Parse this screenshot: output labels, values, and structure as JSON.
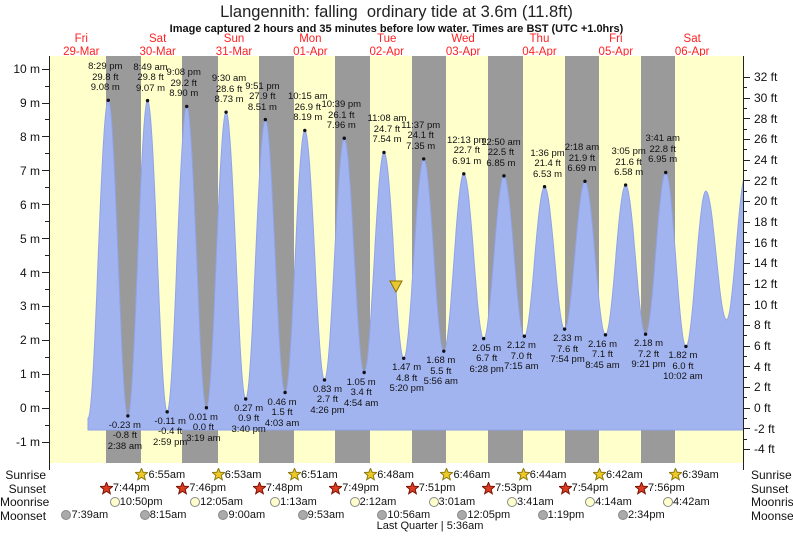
{
  "chart_data": {
    "type": "area",
    "title": "Llangennith: falling  ordinary tide at 3.6m (11.8ft)",
    "subtitle": "Image captured 2 hours and 35 minutes before low water. Times are BST (UTC +1.0hrs)",
    "days": [
      {
        "dow": "Fri",
        "date": "29-Mar"
      },
      {
        "dow": "Sat",
        "date": "30-Mar"
      },
      {
        "dow": "Sun",
        "date": "31-Mar"
      },
      {
        "dow": "Mon",
        "date": "01-Apr"
      },
      {
        "dow": "Tue",
        "date": "02-Apr"
      },
      {
        "dow": "Wed",
        "date": "03-Apr"
      },
      {
        "dow": "Thu",
        "date": "04-Apr"
      },
      {
        "dow": "Fri",
        "date": "05-Apr"
      },
      {
        "dow": "Sat",
        "date": "06-Apr"
      }
    ],
    "y_axis_left": {
      "unit": "m",
      "max": 10,
      "min": -1,
      "label_step": 1
    },
    "y_axis_right": {
      "unit": "ft",
      "max": 32,
      "min": -4,
      "label_step": 2
    },
    "high_tides": [
      {
        "time": "8:29 pm",
        "ft": "29.8 ft",
        "m": "9.08 m",
        "hours": 20.483,
        "height": 9.08
      },
      {
        "time": "8:49 am",
        "ft": "29.8 ft",
        "m": "9.07 m",
        "hours": 32.817,
        "height": 9.07
      },
      {
        "time": "9:08 pm",
        "ft": "29.2 ft",
        "m": "8.90 m",
        "hours": 45.133,
        "height": 8.9
      },
      {
        "time": "9:30 am",
        "ft": "28.6 ft",
        "m": "8.73 m",
        "hours": 57.5,
        "height": 8.73
      },
      {
        "time": "9:51 pm",
        "ft": "27.9 ft",
        "m": "8.51 m",
        "hours": 69.85,
        "height": 8.51
      },
      {
        "time": "10:15 am",
        "ft": "26.9 ft",
        "m": "8.19 m",
        "hours": 82.25,
        "height": 8.19
      },
      {
        "time": "10:39 pm",
        "ft": "26.1 ft",
        "m": "7.96 m",
        "hours": 94.65,
        "height": 7.96
      },
      {
        "time": "11:08 am",
        "ft": "24.7 ft",
        "m": "7.54 m",
        "hours": 107.133,
        "height": 7.54
      },
      {
        "time": "11:37 pm",
        "ft": "24.1 ft",
        "m": "7.35 m",
        "hours": 119.617,
        "height": 7.35
      },
      {
        "time": "12:13 pm",
        "ft": "22.7 ft",
        "m": "6.91 m",
        "hours": 132.217,
        "height": 6.91
      },
      {
        "time": "12:50 am",
        "ft": "22.5 ft",
        "m": "6.85 m",
        "hours": 144.833,
        "height": 6.85
      },
      {
        "time": "1:36 pm",
        "ft": "21.4 ft",
        "m": "6.53 m",
        "hours": 157.6,
        "height": 6.53
      },
      {
        "time": "2:18 am",
        "ft": "21.9 ft",
        "m": "6.69 m",
        "hours": 170.3,
        "height": 6.69
      },
      {
        "time": "3:05 pm",
        "ft": "21.6 ft",
        "m": "6.58 m",
        "hours": 183.083,
        "height": 6.58
      },
      {
        "time": "3:41 am",
        "ft": "22.8 ft",
        "m": "6.95 m",
        "hours": 195.683,
        "height": 6.95
      }
    ],
    "low_tides": [
      {
        "m": "-0.23 m",
        "ft": "-0.8 ft",
        "time": "2:38 am",
        "hours": 26.633,
        "height": -0.23
      },
      {
        "m": "-0.11 m",
        "ft": "-0.4 ft",
        "time": "2:59 pm",
        "hours": 38.983,
        "height": -0.11
      },
      {
        "m": "0.01 m",
        "ft": "0.0 ft",
        "time": "3:19 am",
        "hours": 51.317,
        "height": 0.01
      },
      {
        "m": "0.27 m",
        "ft": "0.9 ft",
        "time": "3:40 pm",
        "hours": 63.667,
        "height": 0.27
      },
      {
        "m": "0.46 m",
        "ft": "1.5 ft",
        "time": "4:03 am",
        "hours": 76.05,
        "height": 0.46
      },
      {
        "m": "0.83 m",
        "ft": "2.7 ft",
        "time": "4:26 pm",
        "hours": 88.433,
        "height": 0.83
      },
      {
        "m": "1.05 m",
        "ft": "3.4 ft",
        "time": "4:54 am",
        "hours": 100.9,
        "height": 1.05
      },
      {
        "m": "1.47 m",
        "ft": "4.8 ft",
        "time": "5:20 pm",
        "hours": 113.333,
        "height": 1.47
      },
      {
        "m": "1.68 m",
        "ft": "5.5 ft",
        "time": "5:56 am",
        "hours": 125.933,
        "height": 1.68
      },
      {
        "m": "2.05 m",
        "ft": "6.7 ft",
        "time": "6:28 pm",
        "hours": 138.467,
        "height": 2.05
      },
      {
        "m": "2.12 m",
        "ft": "7.0 ft",
        "time": "7:15 am",
        "hours": 151.25,
        "height": 2.12
      },
      {
        "m": "2.33 m",
        "ft": "7.6 ft",
        "time": "7:54 pm",
        "hours": 163.9,
        "height": 2.33
      },
      {
        "m": "2.16 m",
        "ft": "7.1 ft",
        "time": "8:45 am",
        "hours": 176.75,
        "height": 2.16
      },
      {
        "m": "2.18 m",
        "ft": "7.2 ft",
        "time": "9:21 pm",
        "hours": 189.35,
        "height": 2.18
      },
      {
        "m": "1.82 m",
        "ft": "6.0 ft",
        "time": "10:02 am",
        "hours": 202.033,
        "height": 1.82
      }
    ],
    "curve_unlabeled": {
      "start": {
        "hours": 14.1,
        "height": -0.3
      },
      "end": [
        {
          "hours": 208.3,
          "height": 6.4
        },
        {
          "hours": 214.8,
          "height": 2.6
        },
        {
          "hours": 220.9,
          "height": 6.9
        }
      ]
    },
    "current_marker": {
      "hours": 110.9,
      "height": 3.6
    },
    "sun_moon": {
      "rows": [
        {
          "name": "Sunrise",
          "icon": "sunrise-star",
          "events": [
            {
              "time": "6:55am",
              "hours": 30.917
            },
            {
              "time": "6:53am",
              "hours": 54.883
            },
            {
              "time": "6:51am",
              "hours": 78.85
            },
            {
              "time": "6:48am",
              "hours": 102.8
            },
            {
              "time": "6:46am",
              "hours": 126.767
            },
            {
              "time": "6:44am",
              "hours": 150.733
            },
            {
              "time": "6:42am",
              "hours": 174.7
            },
            {
              "time": "6:39am",
              "hours": 198.65
            }
          ]
        },
        {
          "name": "Sunset",
          "icon": "sunset-star",
          "events": [
            {
              "time": "7:44pm",
              "hours": 19.733
            },
            {
              "time": "7:46pm",
              "hours": 43.767
            },
            {
              "time": "7:48pm",
              "hours": 67.8
            },
            {
              "time": "7:49pm",
              "hours": 91.817
            },
            {
              "time": "7:51pm",
              "hours": 115.85
            },
            {
              "time": "7:53pm",
              "hours": 139.883
            },
            {
              "time": "7:54pm",
              "hours": 163.9
            },
            {
              "time": "7:56pm",
              "hours": 187.933
            }
          ]
        },
        {
          "name": "Moonrise",
          "icon": "moonrise-circle",
          "events": [
            {
              "time": "10:50pm",
              "hours": 22.833
            },
            {
              "time": "12:05am",
              "hours": 48.083
            },
            {
              "time": "1:13am",
              "hours": 73.217
            },
            {
              "time": "2:12am",
              "hours": 98.2
            },
            {
              "time": "3:01am",
              "hours": 123.017
            },
            {
              "time": "3:41am",
              "hours": 147.683
            },
            {
              "time": "4:14am",
              "hours": 172.233
            },
            {
              "time": "4:42am",
              "hours": 196.7
            }
          ]
        },
        {
          "name": "Moonset",
          "icon": "moonset-circle",
          "events": [
            {
              "time": "7:39am",
              "hours": 7.65
            },
            {
              "time": "8:15am",
              "hours": 32.25
            },
            {
              "time": "9:00am",
              "hours": 57.0
            },
            {
              "time": "9:53am",
              "hours": 81.883
            },
            {
              "time": "10:56am",
              "hours": 106.933
            },
            {
              "time": "12:05pm",
              "hours": 132.083
            },
            {
              "time": "1:19pm",
              "hours": 157.317
            },
            {
              "time": "2:34pm",
              "hours": 182.567
            }
          ]
        }
      ]
    },
    "moon_phase": "Last Quarter | 5:36am",
    "colors": {
      "day_band": "#ffffcc",
      "night_band": "#9a9a9a",
      "tide_fill": "#a2b4f0",
      "tide_stroke": "#8fa3e8",
      "day_label_red": "#ff2222",
      "marker_fill": "#e8c832",
      "marker_stroke": "#8a6d00",
      "sunrise_star_fill": "#f0c828",
      "sunrise_star_stroke": "#8a7a10",
      "sunset_star_fill": "#dd3b22",
      "sunset_star_stroke": "#7a1505",
      "moonrise_fill": "#ffffcc",
      "moonset_fill": "#aaaaaa"
    }
  }
}
